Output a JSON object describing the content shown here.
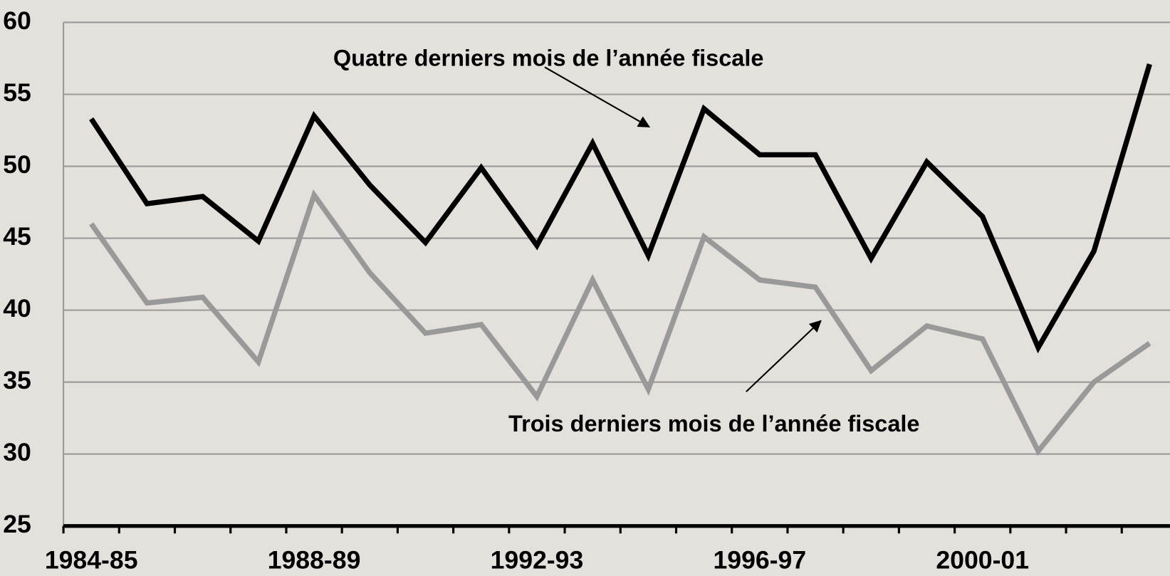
{
  "chart_data": {
    "type": "line",
    "categories": [
      "1984-85",
      null,
      null,
      null,
      "1988-89",
      null,
      null,
      null,
      "1992-93",
      null,
      null,
      null,
      "1996-97",
      null,
      null,
      null,
      "2000-01",
      null,
      null,
      null
    ],
    "series": [
      {
        "color": "#000000",
        "values": [
          53.3,
          47.4,
          47.9,
          44.8,
          53.5,
          48.7,
          44.7,
          49.9,
          44.5,
          51.6,
          43.8,
          54.0,
          50.8,
          50.8,
          43.6,
          50.3,
          46.5,
          37.4,
          44.1,
          57.1
        ]
      },
      {
        "color": "#999999",
        "values": [
          46.0,
          40.5,
          40.9,
          36.4,
          48.0,
          42.6,
          38.4,
          39.0,
          34.0,
          42.1,
          34.5,
          45.1,
          42.1,
          41.6,
          35.8,
          38.9,
          38.0,
          30.2,
          35.0,
          37.7
        ]
      }
    ],
    "annotations": [
      "Quatre derniers mois de l’année fiscale",
      "Trois derniers mois de l’année fiscale"
    ],
    "ylim": [
      25,
      60
    ],
    "yticks": [
      25,
      30,
      35,
      40,
      45,
      50,
      55,
      60
    ],
    "grid": true
  }
}
